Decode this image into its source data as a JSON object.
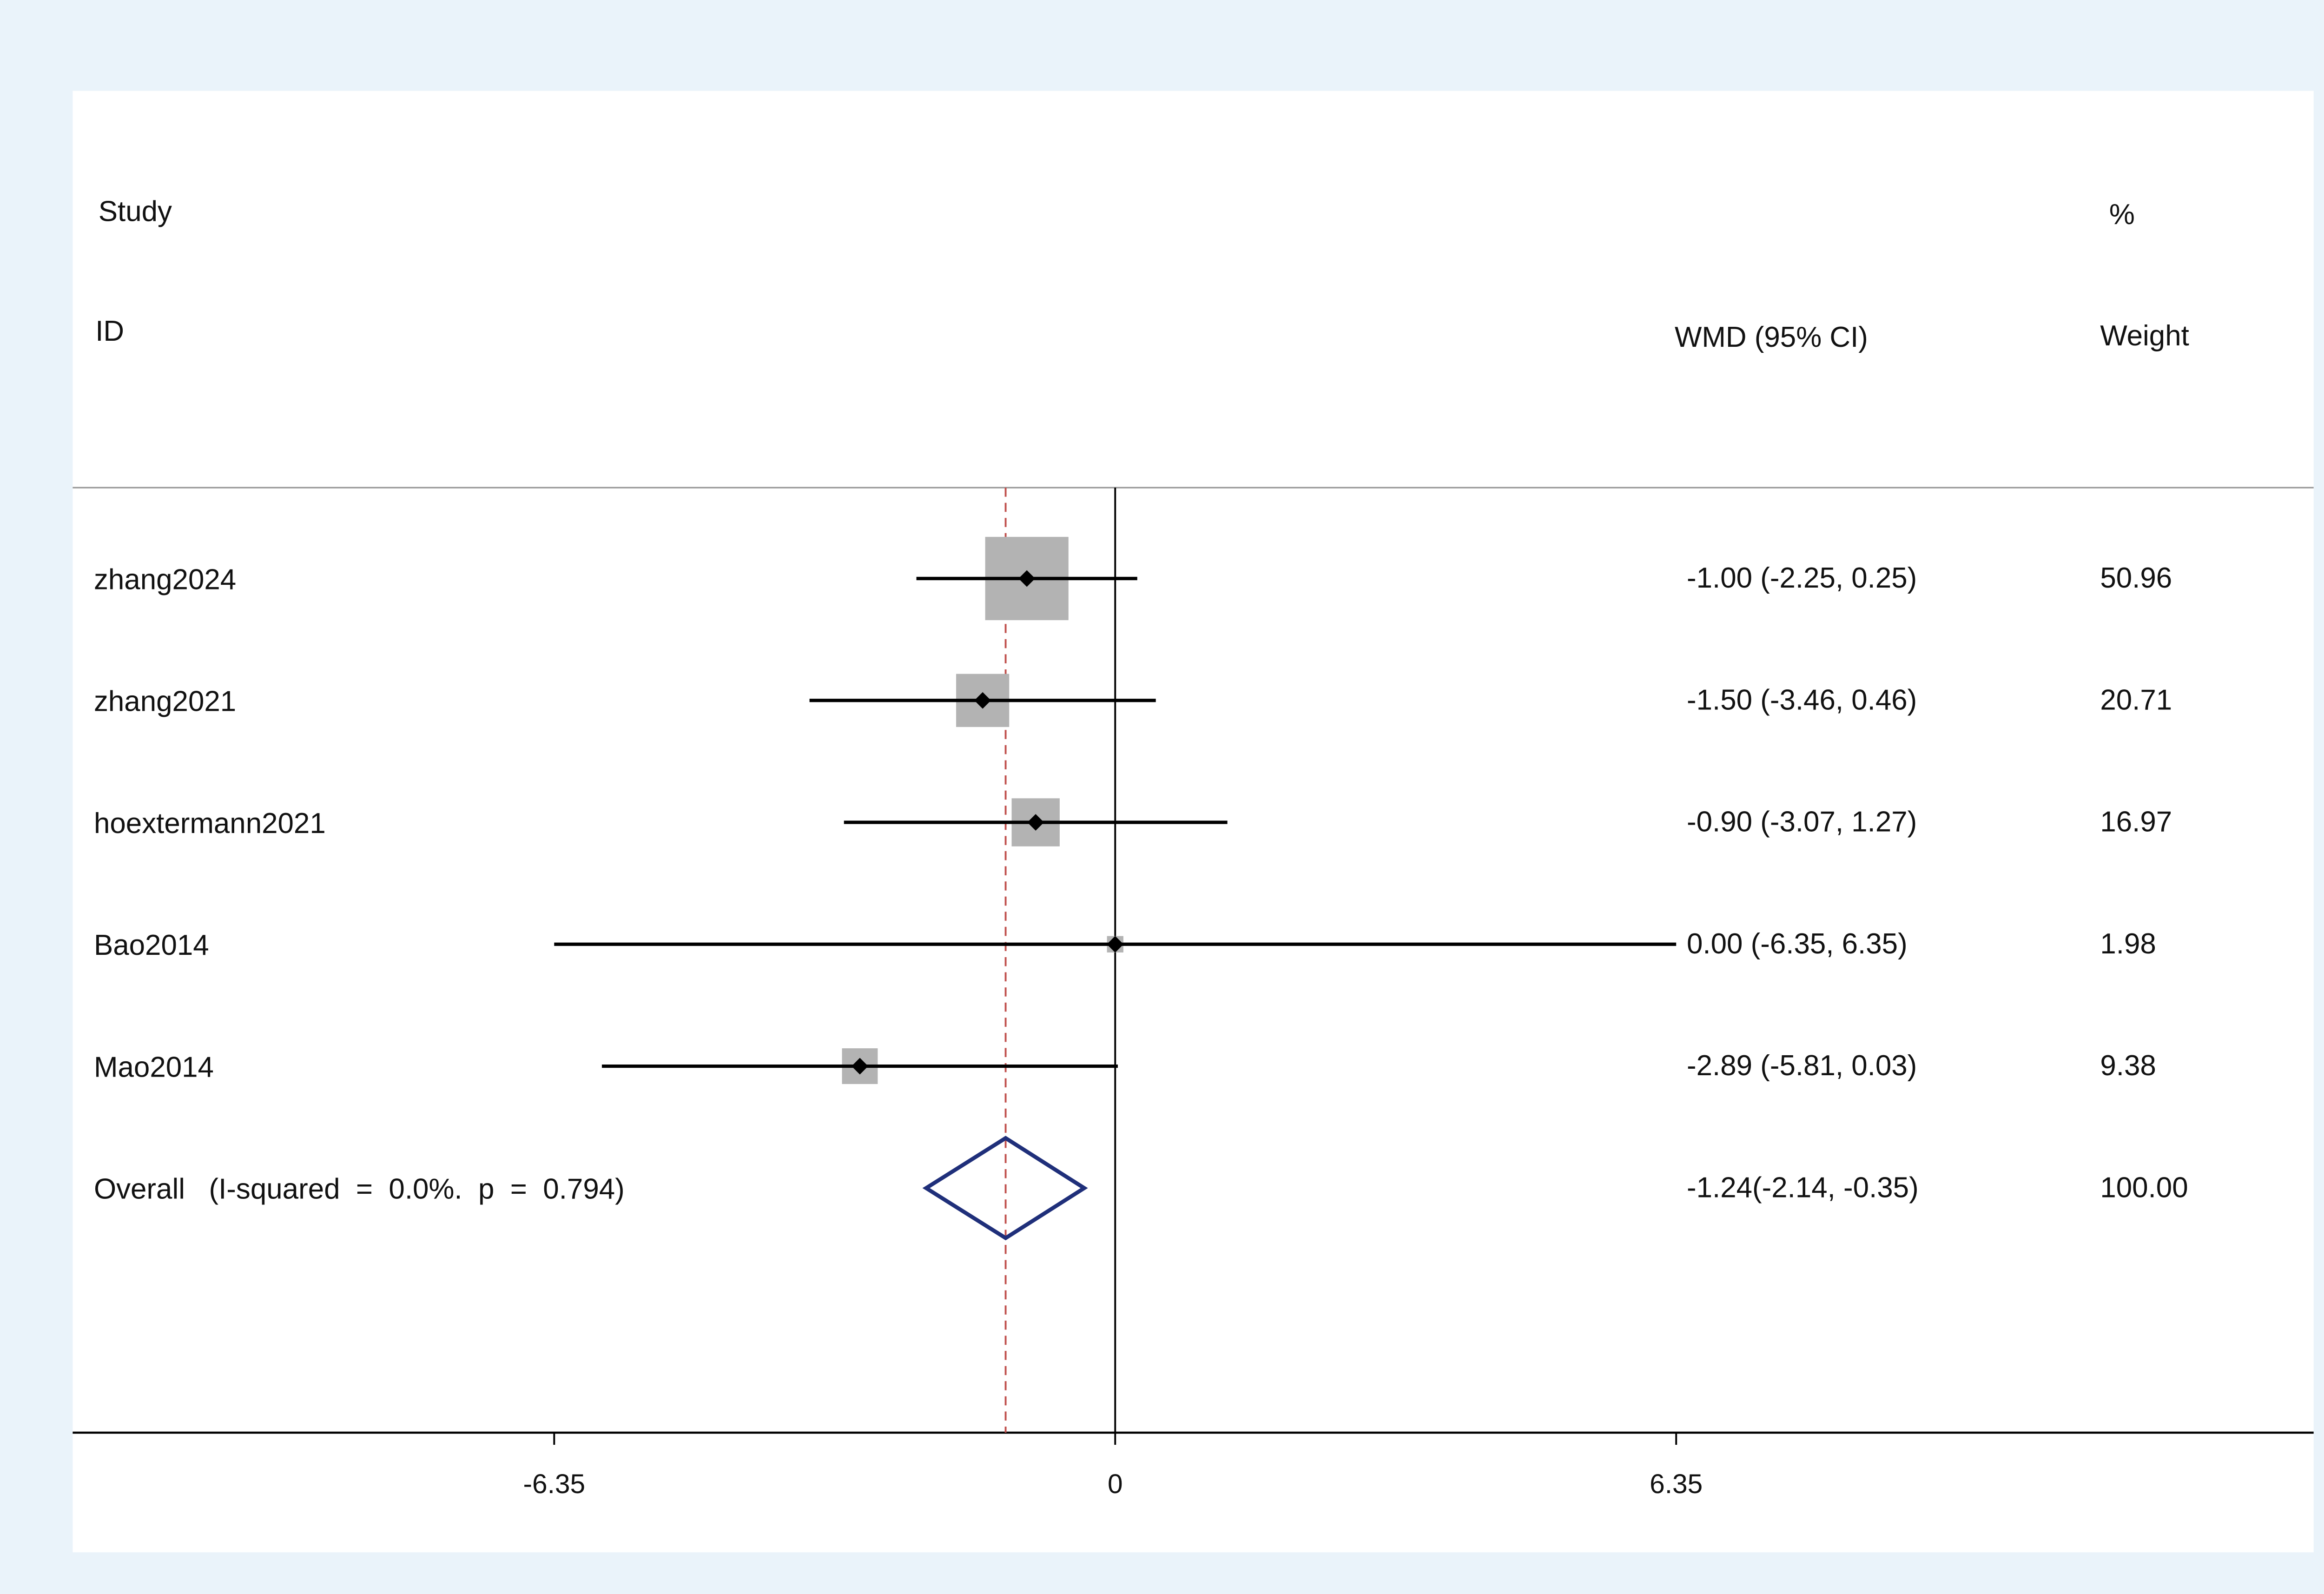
{
  "header": {
    "study": "Study",
    "id": "ID",
    "effect": "WMD (95% CI)",
    "percent": "%",
    "weight": "Weight"
  },
  "colors": {
    "background": "#eaf3fa",
    "panel": "#ffffff",
    "box": "#b3b3b3",
    "diamond": "#1f2f7a",
    "overall_line": "#c0504d"
  },
  "chart_data": {
    "type": "forest",
    "xlim": [
      -6.35,
      6.35
    ],
    "ticks": [
      {
        "value": -6.35,
        "label": "-6.35"
      },
      {
        "value": 0,
        "label": "0"
      },
      {
        "value": 6.35,
        "label": "6.35"
      }
    ],
    "studies": [
      {
        "id": "zhang2024",
        "effect": -1.0,
        "lower": -2.25,
        "upper": 0.25,
        "ci_label": "-1.00 (-2.25, 0.25)",
        "weight": 50.96,
        "weight_label": "50.96"
      },
      {
        "id": "zhang2021",
        "effect": -1.5,
        "lower": -3.46,
        "upper": 0.46,
        "ci_label": "-1.50 (-3.46, 0.46)",
        "weight": 20.71,
        "weight_label": "20.71"
      },
      {
        "id": "hoextermann2021",
        "effect": -0.9,
        "lower": -3.07,
        "upper": 1.27,
        "ci_label": "-0.90 (-3.07, 1.27)",
        "weight": 16.97,
        "weight_label": "16.97"
      },
      {
        "id": "Bao2014",
        "effect": 0.0,
        "lower": -6.35,
        "upper": 6.35,
        "ci_label": "0.00 (-6.35, 6.35)",
        "weight": 1.98,
        "weight_label": "1.98"
      },
      {
        "id": "Mao2014",
        "effect": -2.89,
        "lower": -5.81,
        "upper": 0.03,
        "ci_label": "-2.89 (-5.81, 0.03)",
        "weight": 9.38,
        "weight_label": "9.38"
      }
    ],
    "overall": {
      "label": "Overall   (I-squared  =  0.0%.  p  =  0.794)",
      "effect": -1.24,
      "lower": -2.14,
      "upper": -0.35,
      "ci_label": "-1.24(-2.14, -0.35)",
      "weight_label": "100.00"
    }
  }
}
